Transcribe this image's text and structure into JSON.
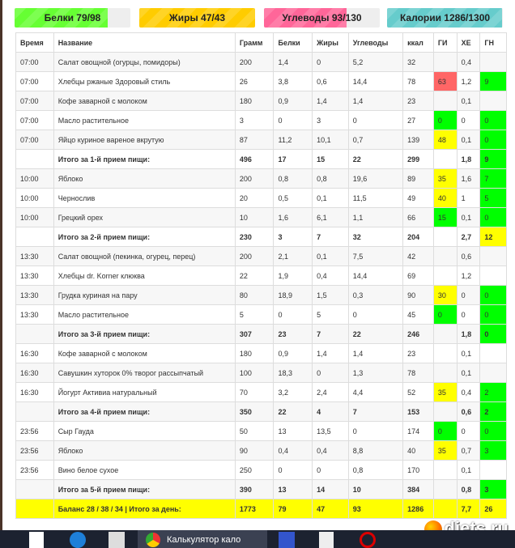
{
  "bars": [
    {
      "label": "Белки 79/98",
      "fraction": 0.806,
      "color": "#66ff33"
    },
    {
      "label": "Жиры 47/43",
      "fraction": 1.0,
      "color": "#ffcc00"
    },
    {
      "label": "Углеводы 93/130",
      "fraction": 0.715,
      "color": "#ff6699"
    },
    {
      "label": "Калории 1286/1300",
      "fraction": 0.99,
      "color": "#66cccc"
    }
  ],
  "columns": [
    "Время",
    "Название",
    "Грамм",
    "Белки",
    "Жиры",
    "Углеводы",
    "ккал",
    "ГИ",
    "ХЕ",
    "ГН"
  ],
  "rows": [
    {
      "type": "item",
      "c": [
        "07:00",
        "Салат овощной (огурцы, помидоры)",
        "200",
        "1,4",
        "0",
        "5,2",
        "32",
        "",
        "0,4",
        ""
      ],
      "gi": "",
      "gn": ""
    },
    {
      "type": "item",
      "c": [
        "07:00",
        "Хлебцы ржаные Здоровый стиль",
        "26",
        "3,8",
        "0,6",
        "14,4",
        "78",
        "63",
        "1,2",
        "9"
      ],
      "gi": "r",
      "gn": "g"
    },
    {
      "type": "item",
      "c": [
        "07:00",
        "Кофе заварной с молоком",
        "180",
        "0,9",
        "1,4",
        "1,4",
        "23",
        "",
        "0,1",
        ""
      ],
      "gi": "",
      "gn": ""
    },
    {
      "type": "item",
      "c": [
        "07:00",
        "Масло растительное",
        "3",
        "0",
        "3",
        "0",
        "27",
        "0",
        "0",
        "0"
      ],
      "gi": "g",
      "gn": "g"
    },
    {
      "type": "item",
      "c": [
        "07:00",
        "Яйцо куриное вареное вкрутую",
        "87",
        "11,2",
        "10,1",
        "0,7",
        "139",
        "48",
        "0,1",
        "0"
      ],
      "gi": "y",
      "gn": "g"
    },
    {
      "type": "sum",
      "c": [
        "",
        "Итого за 1-й прием пищи:",
        "496",
        "17",
        "15",
        "22",
        "299",
        "",
        "1,8",
        "9"
      ],
      "gi": "",
      "gn": "g"
    },
    {
      "type": "item",
      "c": [
        "10:00",
        "Яблоко",
        "200",
        "0,8",
        "0,8",
        "19,6",
        "89",
        "35",
        "1,6",
        "7"
      ],
      "gi": "y",
      "gn": "g"
    },
    {
      "type": "item",
      "c": [
        "10:00",
        "Чернослив",
        "20",
        "0,5",
        "0,1",
        "11,5",
        "49",
        "40",
        "1",
        "5"
      ],
      "gi": "y",
      "gn": "g"
    },
    {
      "type": "item",
      "c": [
        "10:00",
        "Грецкий орех",
        "10",
        "1,6",
        "6,1",
        "1,1",
        "66",
        "15",
        "0,1",
        "0"
      ],
      "gi": "g",
      "gn": "g"
    },
    {
      "type": "sum",
      "c": [
        "",
        "Итого за 2-й прием пищи:",
        "230",
        "3",
        "7",
        "32",
        "204",
        "",
        "2,7",
        "12"
      ],
      "gi": "",
      "gn": "y"
    },
    {
      "type": "item",
      "c": [
        "13:30",
        "Салат овощной (пекинка, огурец, перец)",
        "200",
        "2,1",
        "0,1",
        "7,5",
        "42",
        "",
        "0,6",
        ""
      ],
      "gi": "",
      "gn": ""
    },
    {
      "type": "item",
      "c": [
        "13:30",
        "Хлебцы dr. Korner клюква",
        "22",
        "1,9",
        "0,4",
        "14,4",
        "69",
        "",
        "1,2",
        ""
      ],
      "gi": "",
      "gn": ""
    },
    {
      "type": "item",
      "c": [
        "13:30",
        "Грудка куриная на пару",
        "80",
        "18,9",
        "1,5",
        "0,3",
        "90",
        "30",
        "0",
        "0"
      ],
      "gi": "y",
      "gn": "g"
    },
    {
      "type": "item",
      "c": [
        "13:30",
        "Масло растительное",
        "5",
        "0",
        "5",
        "0",
        "45",
        "0",
        "0",
        "0"
      ],
      "gi": "g",
      "gn": "g"
    },
    {
      "type": "sum",
      "c": [
        "",
        "Итого за 3-й прием пищи:",
        "307",
        "23",
        "7",
        "22",
        "246",
        "",
        "1,8",
        "0"
      ],
      "gi": "",
      "gn": "g"
    },
    {
      "type": "item",
      "c": [
        "16:30",
        "Кофе заварной с молоком",
        "180",
        "0,9",
        "1,4",
        "1,4",
        "23",
        "",
        "0,1",
        ""
      ],
      "gi": "",
      "gn": ""
    },
    {
      "type": "item",
      "c": [
        "16:30",
        "Савушкин хуторок 0% творог рассыпчатый",
        "100",
        "18,3",
        "0",
        "1,3",
        "78",
        "",
        "0,1",
        ""
      ],
      "gi": "",
      "gn": ""
    },
    {
      "type": "item",
      "c": [
        "16:30",
        "Йогурт Активиа натуральный",
        "70",
        "3,2",
        "2,4",
        "4,4",
        "52",
        "35",
        "0,4",
        "2"
      ],
      "gi": "y",
      "gn": "g"
    },
    {
      "type": "sum",
      "c": [
        "",
        "Итого за 4-й прием пищи:",
        "350",
        "22",
        "4",
        "7",
        "153",
        "",
        "0,6",
        "2"
      ],
      "gi": "",
      "gn": "g"
    },
    {
      "type": "item",
      "c": [
        "23:56",
        "Сыр Гауда",
        "50",
        "13",
        "13,5",
        "0",
        "174",
        "0",
        "0",
        "0"
      ],
      "gi": "g",
      "gn": "g"
    },
    {
      "type": "item",
      "c": [
        "23:56",
        "Яблоко",
        "90",
        "0,4",
        "0,4",
        "8,8",
        "40",
        "35",
        "0,7",
        "3"
      ],
      "gi": "y",
      "gn": "g"
    },
    {
      "type": "item",
      "c": [
        "23:56",
        "Вино белое сухое",
        "250",
        "0",
        "0",
        "0,8",
        "170",
        "",
        "0,1",
        ""
      ],
      "gi": "",
      "gn": ""
    },
    {
      "type": "sum",
      "c": [
        "",
        "Итого за 5-й прием пищи:",
        "390",
        "13",
        "14",
        "10",
        "384",
        "",
        "0,8",
        "3"
      ],
      "gi": "",
      "gn": "g"
    },
    {
      "type": "total",
      "c": [
        "",
        "Баланс 28 / 38 / 34 | Итого за день:",
        "1773",
        "79",
        "47",
        "93",
        "1286",
        "",
        "7,7",
        "26"
      ],
      "gi": "",
      "gn": ""
    }
  ],
  "taskbar": {
    "chrome_task": "Калькулятор кало"
  },
  "watermark": "diets.ru"
}
